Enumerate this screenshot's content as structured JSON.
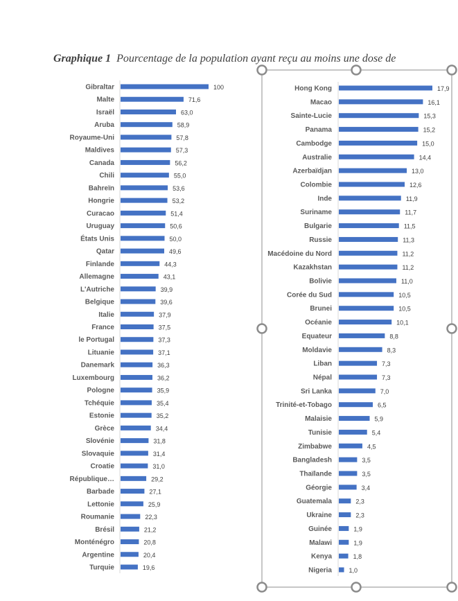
{
  "title": {
    "label": "Graphique 1",
    "text": "Pourcentage de la population ayant reçu au moins une dose de"
  },
  "colors": {
    "bar": "#4472C4",
    "axis": "#D9D9D9",
    "selection": "#8C8C8C"
  },
  "chart_data": [
    {
      "type": "bar",
      "orientation": "horizontal",
      "title": "Pourcentage de la population ayant reçu au moins une dose de",
      "xlabel": "",
      "ylabel": "",
      "xlim": [
        0,
        100
      ],
      "grid": false,
      "categories": [
        "Gibraltar",
        "Malte",
        "Israël",
        "Aruba",
        "Royaume-Uni",
        "Maldives",
        "Canada",
        "Chili",
        "Bahreïn",
        "Hongrie",
        "Curacao",
        "Uruguay",
        "États Unis",
        "Qatar",
        "Finlande",
        "Allemagne",
        "L'Autriche",
        "Belgique",
        "Italie",
        "France",
        "le Portugal",
        "Lituanie",
        "Danemark",
        "Luxembourg",
        "Pologne",
        "Tchéquie",
        "Estonie",
        "Grèce",
        "Slovénie",
        "Slovaquie",
        "Croatie",
        "République…",
        "Barbade",
        "Lettonie",
        "Roumanie",
        "Brésil",
        "Monténégro",
        "Argentine",
        "Turquie"
      ],
      "values": [
        100,
        71.6,
        63.0,
        58.9,
        57.8,
        57.3,
        56.2,
        55.0,
        53.6,
        53.2,
        51.4,
        50.6,
        50.0,
        49.6,
        44.3,
        43.1,
        39.9,
        39.6,
        37.9,
        37.5,
        37.3,
        37.1,
        36.3,
        36.2,
        35.9,
        35.4,
        35.2,
        34.4,
        31.8,
        31.4,
        31.0,
        29.2,
        27.1,
        25.9,
        22.3,
        21.2,
        20.8,
        20.4,
        19.6
      ],
      "labels": [
        "100",
        "71,6",
        "63,0",
        "58,9",
        "57,8",
        "57,3",
        "56,2",
        "55,0",
        "53,6",
        "53,2",
        "51,4",
        "50,6",
        "50,0",
        "49,6",
        "44,3",
        "43,1",
        "39,9",
        "39,6",
        "37,9",
        "37,5",
        "37,3",
        "37,1",
        "36,3",
        "36,2",
        "35,9",
        "35,4",
        "35,2",
        "34,4",
        "31,8",
        "31,4",
        "31,0",
        "29,2",
        "27,1",
        "25,9",
        "22,3",
        "21,2",
        "20,8",
        "20,4",
        "19,6"
      ]
    },
    {
      "type": "bar",
      "orientation": "horizontal",
      "xlabel": "",
      "ylabel": "",
      "xlim": [
        0,
        17.9
      ],
      "grid": false,
      "categories": [
        "Hong Kong",
        "Macao",
        "Sainte-Lucie",
        "Panama",
        "Cambodge",
        "Australie",
        "Azerbaïdjan",
        "Colombie",
        "Inde",
        "Suriname",
        "Bulgarie",
        "Russie",
        "Macédoine du Nord",
        "Kazakhstan",
        "Bolivie",
        "Corée du Sud",
        "Brunei",
        "Océanie",
        "Equateur",
        "Moldavie",
        "Liban",
        "Népal",
        "Sri Lanka",
        "Trinité-et-Tobago",
        "Malaisie",
        "Tunisie",
        "Zimbabwe",
        "Bangladesh",
        "Thaïlande",
        "Géorgie",
        "Guatemala",
        "Ukraine",
        "Guinée",
        "Malawi",
        "Kenya",
        "Nigeria"
      ],
      "values": [
        17.9,
        16.1,
        15.3,
        15.2,
        15.0,
        14.4,
        13.0,
        12.6,
        11.9,
        11.7,
        11.5,
        11.3,
        11.2,
        11.2,
        11.0,
        10.5,
        10.5,
        10.1,
        8.8,
        8.3,
        7.3,
        7.3,
        7.0,
        6.5,
        5.9,
        5.4,
        4.5,
        3.5,
        3.5,
        3.4,
        2.3,
        2.3,
        1.9,
        1.9,
        1.8,
        1.0
      ],
      "labels": [
        "17,9",
        "16,1",
        "15,3",
        "15,2",
        "15,0",
        "14,4",
        "13,0",
        "12,6",
        "11,9",
        "11,7",
        "11,5",
        "11,3",
        "11,2",
        "11,2",
        "11,0",
        "10,5",
        "10,5",
        "10,1",
        "8,8",
        "8,3",
        "7,3",
        "7,3",
        "7,0",
        "6,5",
        "5,9",
        "5,4",
        "4,5",
        "3,5",
        "3,5",
        "3,4",
        "2,3",
        "2,3",
        "1,9",
        "1,9",
        "1,8",
        "1,0"
      ]
    }
  ]
}
